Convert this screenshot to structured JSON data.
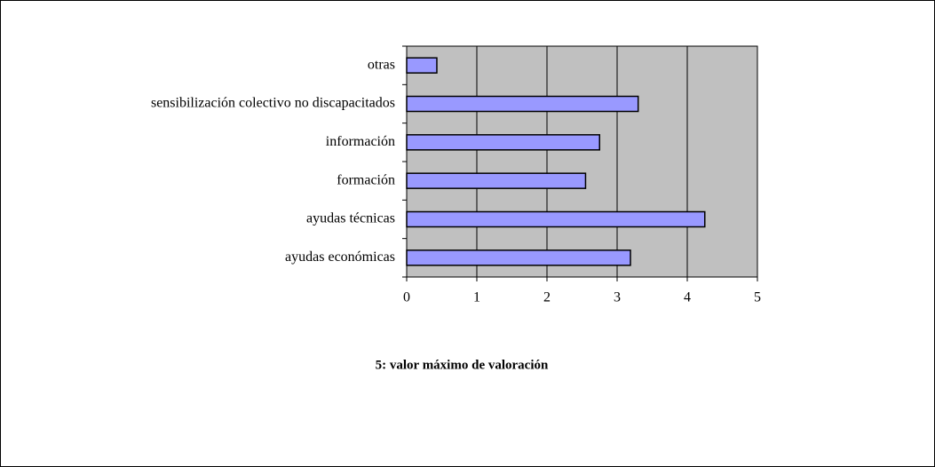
{
  "chart_data": {
    "type": "bar",
    "orientation": "horizontal",
    "categories": [
      "ayudas económicas",
      "ayudas técnicas",
      "formación",
      "información",
      "sensibilización colectivo no discapacitados",
      "otras"
    ],
    "values": [
      3.19,
      4.25,
      2.55,
      2.75,
      3.3,
      0.43
    ],
    "color": "#9999ff",
    "xlim": [
      0,
      5
    ],
    "xticks": [
      0,
      1,
      2,
      3,
      4,
      5
    ],
    "grid": true,
    "annotation": "5: valor máximo de valoración"
  }
}
